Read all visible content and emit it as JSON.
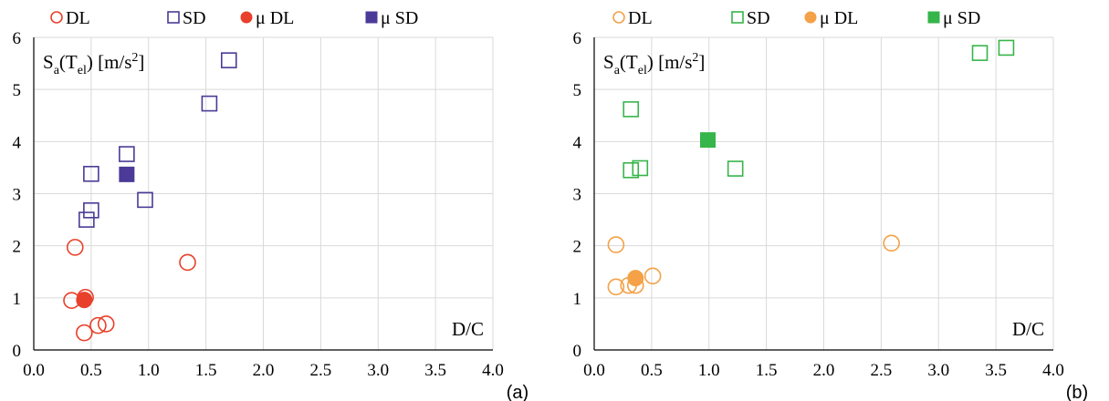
{
  "chart_data": [
    {
      "type": "scatter",
      "panel_label": "(a)",
      "ylabel_parts": {
        "s": "S",
        "sub_a": "a",
        "open": "(T",
        "sub_el": "el",
        "close": ") [m/s",
        "sup": "2",
        "end": "]"
      },
      "xlabel": "D/C",
      "xlim": [
        0,
        4
      ],
      "ylim": [
        0,
        6
      ],
      "x_ticks": [
        "0.0",
        "0.5",
        "1.0",
        "1.5",
        "2.0",
        "2.5",
        "3.0",
        "3.5",
        "4.0"
      ],
      "y_ticks": [
        "0",
        "1",
        "2",
        "3",
        "4",
        "5",
        "6"
      ],
      "grid": true,
      "legend_position": "top",
      "series": [
        {
          "name": "DL",
          "marker": "circle",
          "filled": false,
          "color": "#e8402a",
          "points": [
            [
              0.36,
              1.97
            ],
            [
              0.45,
              1.01
            ],
            [
              0.33,
              0.95
            ],
            [
              0.44,
              0.33
            ],
            [
              0.56,
              0.47
            ],
            [
              0.63,
              0.5
            ],
            [
              1.34,
              1.68
            ]
          ]
        },
        {
          "name": "SD",
          "marker": "square",
          "filled": false,
          "color": "#4b3a97",
          "points": [
            [
              0.5,
              3.38
            ],
            [
              0.5,
              2.68
            ],
            [
              0.46,
              2.5
            ],
            [
              0.81,
              3.76
            ],
            [
              0.97,
              2.88
            ],
            [
              1.53,
              4.73
            ],
            [
              1.7,
              5.56
            ]
          ]
        },
        {
          "name": "μ DL",
          "marker": "circle",
          "filled": true,
          "color": "#e8402a",
          "points": [
            [
              0.44,
              0.96
            ]
          ]
        },
        {
          "name": "μ SD",
          "marker": "square",
          "filled": true,
          "color": "#4b3a97",
          "points": [
            [
              0.81,
              3.37
            ]
          ]
        }
      ]
    },
    {
      "type": "scatter",
      "panel_label": "(b)",
      "ylabel_parts": {
        "s": "S",
        "sub_a": "a",
        "open": "(T",
        "sub_el": "el",
        "close": ") [m/s",
        "sup": "2",
        "end": "]"
      },
      "xlabel": "D/C",
      "xlim": [
        0,
        4
      ],
      "ylim": [
        0,
        6
      ],
      "x_ticks": [
        "0.0",
        "0.5",
        "1.0",
        "1.5",
        "2.0",
        "2.5",
        "3.0",
        "3.5",
        "4.0"
      ],
      "y_ticks": [
        "0",
        "1",
        "2",
        "3",
        "4",
        "5",
        "6"
      ],
      "grid": true,
      "legend_position": "top",
      "series": [
        {
          "name": "DL",
          "marker": "circle",
          "filled": false,
          "color": "#f4a147",
          "points": [
            [
              0.19,
              2.02
            ],
            [
              0.19,
              1.21
            ],
            [
              0.3,
              1.24
            ],
            [
              0.36,
              1.24
            ],
            [
              0.51,
              1.42
            ],
            [
              2.59,
              2.05
            ]
          ]
        },
        {
          "name": "SD",
          "marker": "square",
          "filled": false,
          "color": "#36b54a",
          "points": [
            [
              0.32,
              4.62
            ],
            [
              0.32,
              3.45
            ],
            [
              0.4,
              3.49
            ],
            [
              1.23,
              3.48
            ],
            [
              3.36,
              5.7
            ],
            [
              3.59,
              5.8
            ]
          ]
        },
        {
          "name": "μ DL",
          "marker": "circle",
          "filled": true,
          "color": "#f4a147",
          "points": [
            [
              0.36,
              1.38
            ]
          ]
        },
        {
          "name": "μ SD",
          "marker": "square",
          "filled": true,
          "color": "#36b54a",
          "points": [
            [
              0.99,
              4.03
            ]
          ]
        }
      ]
    }
  ]
}
